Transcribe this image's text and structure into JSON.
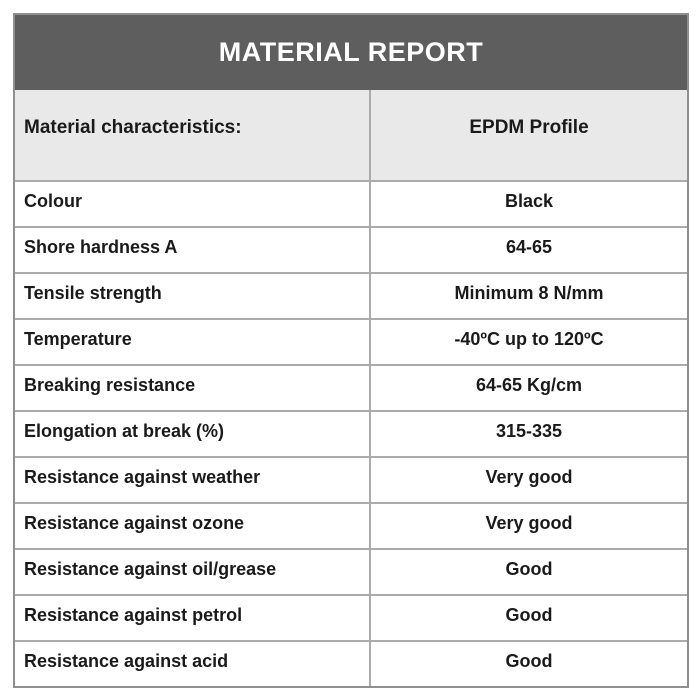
{
  "report": {
    "title": "MATERIAL REPORT",
    "columns": {
      "characteristic": "Material characteristics:",
      "profile": "EPDM Profile"
    },
    "rows": [
      {
        "label": "Colour",
        "value": "Black"
      },
      {
        "label": "Shore hardness A",
        "value": "64-65"
      },
      {
        "label": "Tensile strength",
        "value": "Minimum 8 N/mm"
      },
      {
        "label": "Temperature",
        "value": "-40ºC up to 120ºC"
      },
      {
        "label": "Breaking resistance",
        "value": "64-65 Kg/cm"
      },
      {
        "label": "Elongation at break (%)",
        "value": "315-335"
      },
      {
        "label": "Resistance against weather",
        "value": "Very good"
      },
      {
        "label": "Resistance against ozone",
        "value": "Very good"
      },
      {
        "label": "Resistance against oil/grease",
        "value": "Good"
      },
      {
        "label": "Resistance against petrol",
        "value": "Good"
      },
      {
        "label": "Resistance against acid",
        "value": "Good"
      }
    ],
    "colors": {
      "title_background": "#5e5e5e",
      "title_text": "#ffffff",
      "header_background": "#e9e9e9",
      "body_background": "#ffffff",
      "border": "#a0a0a0",
      "text": "#1a1a1a"
    }
  }
}
